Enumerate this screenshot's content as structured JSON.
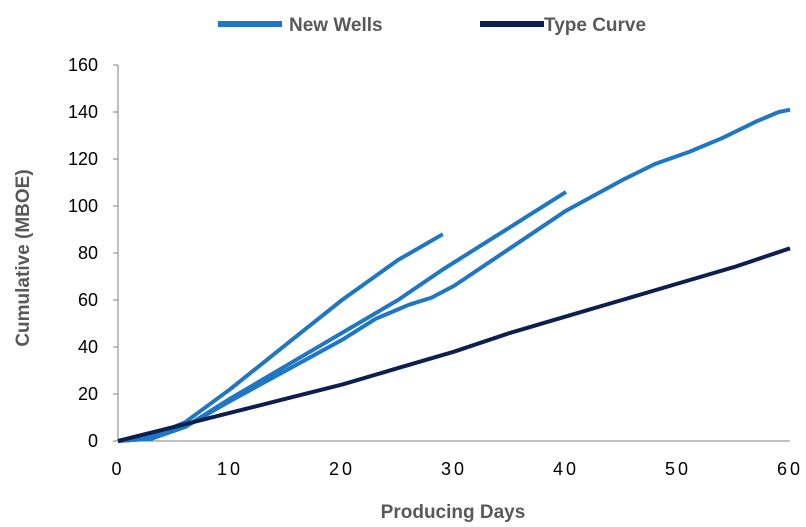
{
  "chart_data": {
    "type": "line",
    "title": "",
    "xlabel": "Producing Days",
    "ylabel": "Cumulative (MBOE)",
    "xlim": [
      0,
      60
    ],
    "ylim": [
      0,
      160
    ],
    "x_ticks": [
      "0",
      "10",
      "20",
      "30",
      "40",
      "50",
      "60"
    ],
    "y_ticks": [
      "0",
      "20",
      "40",
      "60",
      "80",
      "100",
      "120",
      "140",
      "160"
    ],
    "grid": false,
    "legend_position": "top",
    "legend": [
      {
        "label": "New Wells",
        "color": "#1f77c4"
      },
      {
        "label": "Type Curve",
        "color": "#0d1f4f"
      }
    ],
    "series": [
      {
        "legend_group": "New Wells",
        "color": "#1f77c4",
        "points": [
          [
            0,
            0
          ],
          [
            3,
            1
          ],
          [
            6,
            6
          ],
          [
            10,
            18
          ],
          [
            15,
            32
          ],
          [
            20,
            46
          ],
          [
            25,
            60
          ],
          [
            29,
            73
          ],
          [
            33,
            85
          ],
          [
            37,
            97
          ],
          [
            40,
            106
          ]
        ]
      },
      {
        "legend_group": "New Wells",
        "color": "#1f77c4",
        "points": [
          [
            0,
            0
          ],
          [
            3,
            1
          ],
          [
            6,
            6
          ],
          [
            10,
            17
          ],
          [
            15,
            30
          ],
          [
            20,
            43
          ],
          [
            23,
            52
          ],
          [
            25,
            56
          ],
          [
            26,
            58
          ],
          [
            28,
            61
          ],
          [
            30,
            66
          ],
          [
            35,
            82
          ],
          [
            40,
            98
          ],
          [
            45,
            111
          ],
          [
            48,
            118
          ],
          [
            51,
            123
          ],
          [
            54,
            129
          ],
          [
            57,
            136
          ],
          [
            59,
            140
          ],
          [
            60,
            141
          ]
        ]
      },
      {
        "legend_group": "New Wells",
        "color": "#1f77c4",
        "points": [
          [
            0,
            0
          ],
          [
            3,
            2
          ],
          [
            6,
            8
          ],
          [
            10,
            22
          ],
          [
            15,
            41
          ],
          [
            20,
            60
          ],
          [
            25,
            77
          ],
          [
            29,
            88
          ]
        ]
      },
      {
        "name": "Type Curve",
        "color": "#0d1f4f",
        "points": [
          [
            0,
            0
          ],
          [
            5,
            6
          ],
          [
            10,
            12
          ],
          [
            15,
            18
          ],
          [
            20,
            24
          ],
          [
            25,
            31
          ],
          [
            30,
            38
          ],
          [
            35,
            46
          ],
          [
            40,
            53
          ],
          [
            45,
            60
          ],
          [
            50,
            67
          ],
          [
            55,
            74
          ],
          [
            60,
            82
          ]
        ]
      }
    ]
  }
}
